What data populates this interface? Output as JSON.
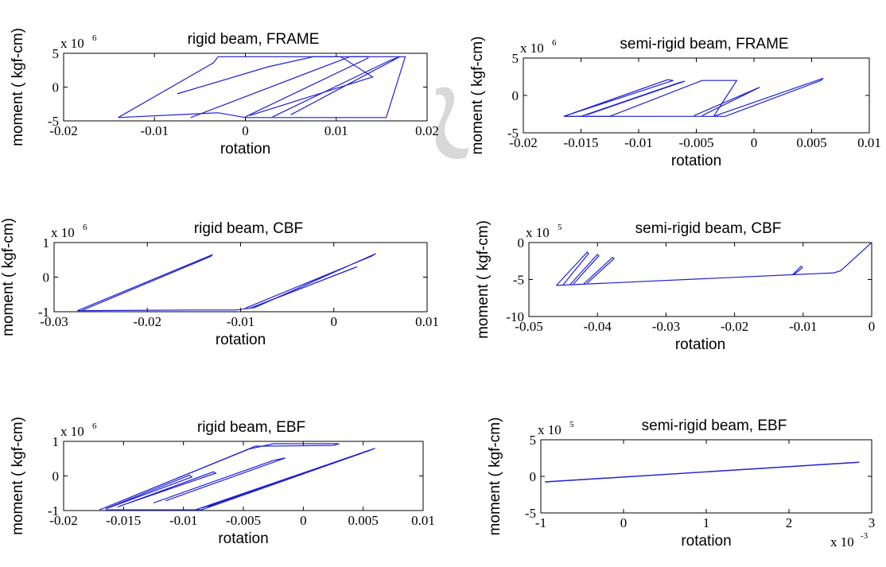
{
  "chart_data": [
    {
      "type": "line",
      "title": "rigid beam, FRAME",
      "xlabel": "rotation",
      "ylabel": "moment ( kgf-cm)",
      "xlim": [
        -0.02,
        0.02
      ],
      "ylim": [
        -5,
        5
      ],
      "x_ticks": [
        "-0.02",
        "-0.01",
        "0",
        "0.01",
        "0.02"
      ],
      "y_ticks": [
        "5",
        "0",
        "-5"
      ],
      "y_multiplier": "x 10",
      "y_multiplier_exp": "6",
      "series": [
        {
          "x": [
            -0.014,
            -0.0035,
            -0.003,
            0.0176,
            0.0155,
            0.0,
            -0.003,
            -0.014
          ],
          "y": [
            -4.5,
            3.6,
            4.5,
            4.5,
            -4.5,
            -4.5,
            -3.8,
            -4.5
          ]
        },
        {
          "x": [
            -0.006,
            0.0115,
            0.0135,
            0.0135,
            0.0
          ],
          "y": [
            -4.5,
            4.5,
            4.5,
            4.3,
            -4.4
          ]
        },
        {
          "x": [
            -0.0075,
            0.0025,
            0.0075,
            0.0105,
            0.014,
            0.0005
          ],
          "y": [
            -1.0,
            3.0,
            4.5,
            4.5,
            1.5,
            -4.2
          ]
        },
        {
          "x": [
            0.003,
            0.016,
            0.017,
            0.005
          ],
          "y": [
            -4.4,
            4.0,
            4.5,
            -4.1
          ]
        }
      ]
    },
    {
      "type": "line",
      "title": "semi-rigid beam, FRAME",
      "xlabel": "rotation",
      "ylabel": "moment ( kgf-cm)",
      "xlim": [
        -0.02,
        0.01
      ],
      "ylim": [
        -5,
        5
      ],
      "x_ticks": [
        "-0.02",
        "-0.015",
        "-0.01",
        "-0.005",
        "0",
        "0.005",
        "0.01"
      ],
      "y_ticks": [
        "5",
        "0",
        "-5"
      ],
      "y_multiplier": "x 10",
      "y_multiplier_exp": "6",
      "series": [
        {
          "x": [
            -0.0165,
            -0.0075,
            -0.007,
            -0.0165,
            -0.0125,
            -0.0045,
            -0.0015,
            -0.0035
          ],
          "y": [
            -2.8,
            2.1,
            2.0,
            -2.8,
            -2.8,
            2.0,
            2.0,
            -2.8
          ]
        },
        {
          "x": [
            -0.0035,
            0.006,
            0.0058,
            -0.0025,
            -0.0165
          ],
          "y": [
            -2.8,
            2.3,
            2.0,
            -2.8,
            -2.8
          ]
        },
        {
          "x": [
            -0.015,
            -0.0065,
            -0.006,
            -0.0145
          ],
          "y": [
            -2.8,
            1.7,
            1.9,
            -2.6
          ]
        },
        {
          "x": [
            -0.0045,
            0.0005,
            0.0002,
            -0.0052
          ],
          "y": [
            -2.7,
            1.1,
            0.9,
            -2.7
          ]
        }
      ]
    },
    {
      "type": "line",
      "title": "rigid beam, CBF",
      "xlabel": "rotation",
      "ylabel": "moment ( kgf-cm)",
      "xlim": [
        -0.03,
        0.01
      ],
      "ylim": [
        -1,
        1
      ],
      "x_ticks": [
        "-0.03",
        "-0.02",
        "-0.01",
        "0",
        "0.01"
      ],
      "y_ticks": [
        "1",
        "0",
        "-1"
      ],
      "y_multiplier": "x 10",
      "y_multiplier_exp": "6",
      "series": [
        {
          "x": [
            -0.0275,
            -0.013,
            -0.0132,
            -0.027
          ],
          "y": [
            -0.97,
            0.65,
            0.6,
            -0.96
          ]
        },
        {
          "x": [
            -0.0275,
            -0.015,
            -0.0105,
            -0.0085,
            0.0045,
            0.004,
            -0.0095
          ],
          "y": [
            -0.97,
            -0.95,
            -0.95,
            -0.88,
            0.68,
            0.6,
            -0.9
          ]
        },
        {
          "x": [
            -0.0085,
            0.0025,
            0.002,
            -0.009
          ],
          "y": [
            -0.85,
            0.3,
            0.25,
            -0.9
          ]
        }
      ]
    },
    {
      "type": "line",
      "title": "semi-rigid beam, CBF",
      "xlabel": "rotation",
      "ylabel": "moment ( kgf-cm)",
      "xlim": [
        -0.05,
        0
      ],
      "ylim": [
        -10,
        0
      ],
      "x_ticks": [
        "-0.05",
        "-0.04",
        "-0.03",
        "-0.02",
        "-0.01",
        "0"
      ],
      "y_ticks": [
        "0",
        "-5",
        "-10"
      ],
      "y_multiplier": "x 10",
      "y_multiplier_exp": "5",
      "series": [
        {
          "x": [
            -0.046,
            -0.0055,
            -0.0045,
            0.0
          ],
          "y": [
            -5.8,
            -4.1,
            -3.8,
            0.0
          ]
        },
        {
          "x": [
            -0.046,
            -0.0415,
            -0.0413,
            -0.045
          ],
          "y": [
            -5.8,
            -1.3,
            -1.5,
            -5.7
          ]
        },
        {
          "x": [
            -0.044,
            -0.04,
            -0.0398,
            -0.0435
          ],
          "y": [
            -5.7,
            -1.6,
            -1.8,
            -5.6
          ]
        },
        {
          "x": [
            -0.042,
            -0.0378,
            -0.0376,
            -0.0415
          ],
          "y": [
            -5.6,
            -2.0,
            -2.2,
            -5.5
          ]
        },
        {
          "x": [
            -0.0115,
            -0.0103,
            -0.0101,
            -0.0113
          ],
          "y": [
            -4.3,
            -3.2,
            -3.4,
            -4.3
          ]
        }
      ]
    },
    {
      "type": "line",
      "title": "rigid beam, EBF",
      "xlabel": "rotation",
      "ylabel": "moment ( kgf-cm)",
      "xlim": [
        -0.02,
        0.01
      ],
      "ylim": [
        -1,
        1
      ],
      "x_ticks": [
        "-0.02",
        "-0.015",
        "-0.01",
        "-0.005",
        "0",
        "0.005",
        "0.01"
      ],
      "y_ticks": [
        "1",
        "0",
        "-1"
      ],
      "y_multiplier": "x 10",
      "y_multiplier_exp": "6",
      "series": [
        {
          "x": [
            -0.017,
            -0.0045,
            -0.0025,
            0.003,
            0.0025,
            -0.004,
            -0.017
          ],
          "y": [
            -0.98,
            0.78,
            0.93,
            0.93,
            0.88,
            0.86,
            -0.98
          ]
        },
        {
          "x": [
            -0.0155,
            -0.0075,
            -0.0073,
            -0.0153
          ],
          "y": [
            -0.9,
            0.12,
            0.08,
            -0.87
          ]
        },
        {
          "x": [
            -0.0165,
            -0.0095,
            -0.0093,
            -0.0163
          ],
          "y": [
            -0.95,
            0.02,
            -0.03,
            -0.93
          ]
        },
        {
          "x": [
            -0.0125,
            -0.0025,
            -0.0015,
            -0.0115
          ],
          "y": [
            -0.78,
            0.45,
            0.52,
            -0.72
          ]
        },
        {
          "x": [
            -0.009,
            0.006,
            0.0055,
            -0.0085,
            -0.0165
          ],
          "y": [
            -0.98,
            0.8,
            0.73,
            -0.98,
            -0.98
          ]
        },
        {
          "x": [
            -0.0085,
            0.0055,
            0.005,
            -0.008
          ],
          "y": [
            -0.93,
            0.74,
            0.68,
            -0.9
          ]
        }
      ]
    },
    {
      "type": "line",
      "title": "semi-rigid beam, EBF",
      "xlabel": "rotation",
      "ylabel": "moment ( kgf-cm)",
      "xlim": [
        -1,
        3
      ],
      "ylim": [
        -5,
        5
      ],
      "x_ticks": [
        "-1",
        "0",
        "1",
        "2",
        "3"
      ],
      "y_ticks": [
        "5",
        "0",
        "-5"
      ],
      "y_multiplier": "x 10",
      "y_multiplier_exp": "5",
      "x_multiplier": "x 10",
      "x_multiplier_exp": "-3",
      "series": [
        {
          "x": [
            -0.95,
            2.85,
            2.83,
            -0.95
          ],
          "y": [
            -0.75,
            1.95,
            1.9,
            -0.78
          ]
        }
      ]
    }
  ],
  "colors": {
    "line": "#1f1fd6",
    "axes": "#000000",
    "watermark": "#d8d8d8"
  }
}
